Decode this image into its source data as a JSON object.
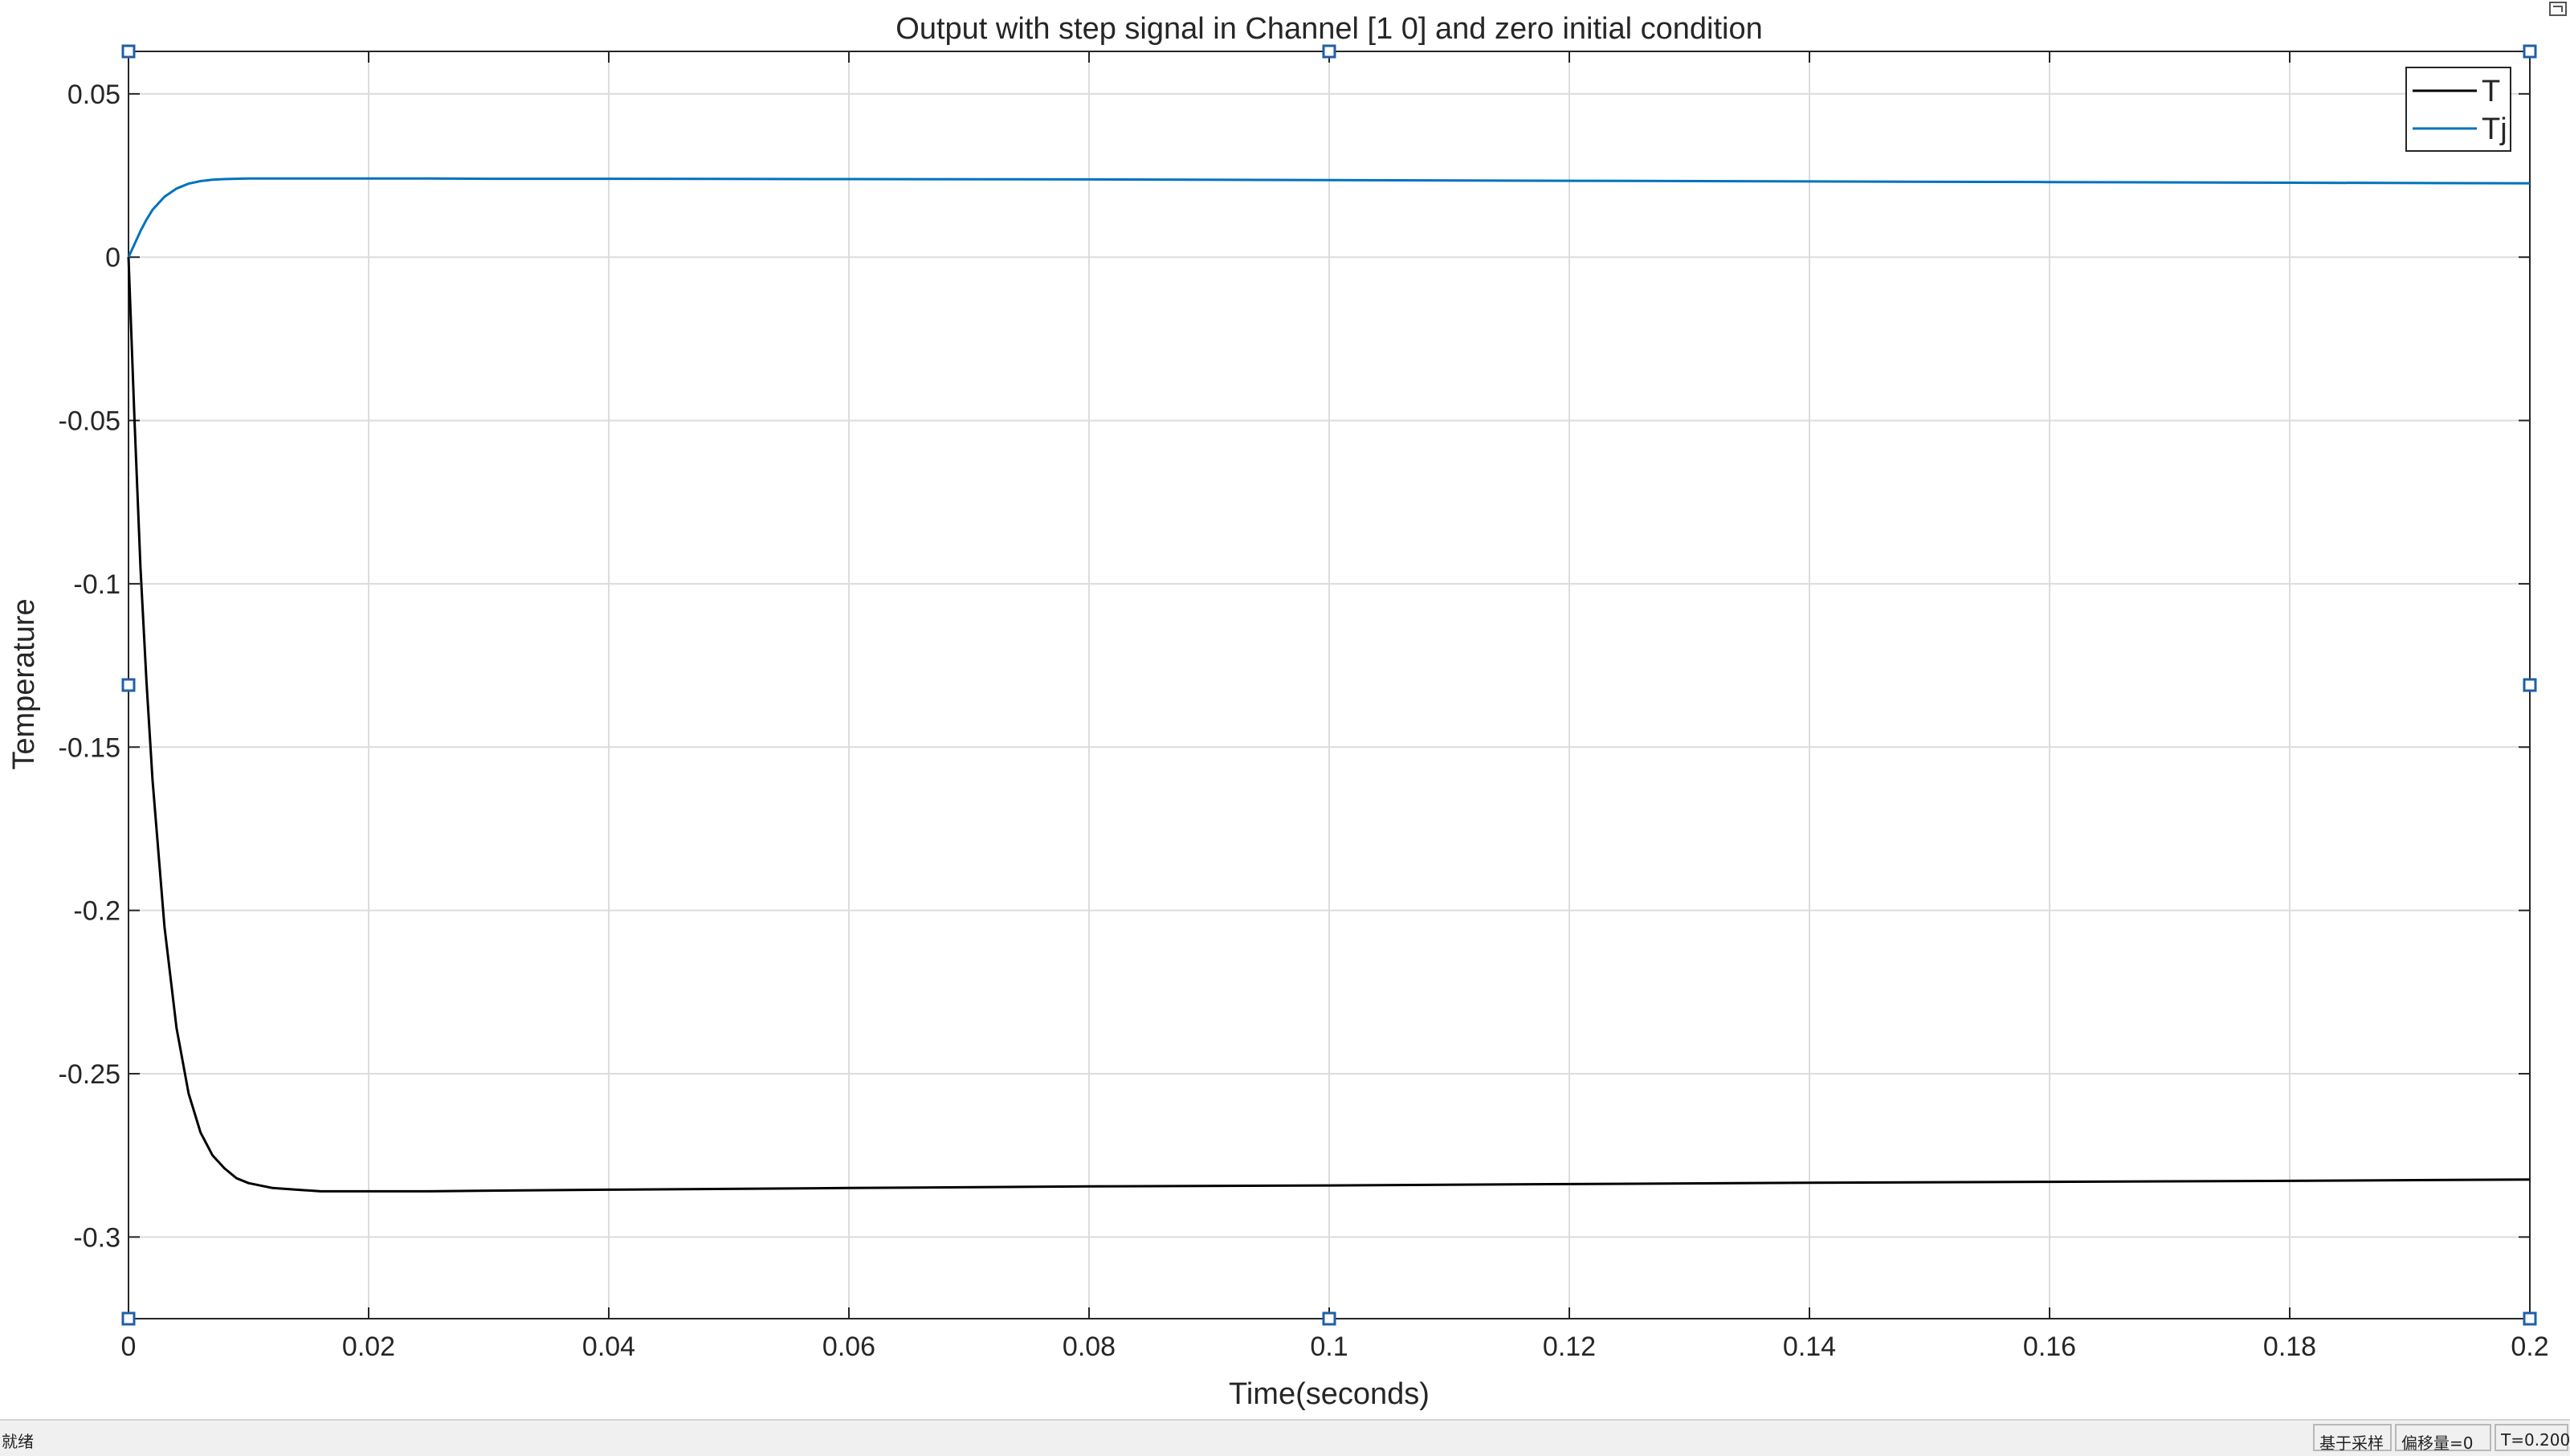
{
  "chart_data": {
    "type": "line",
    "title": "Output with step signal in Channel [1 0] and zero initial condition",
    "xlabel": "Time(seconds)",
    "ylabel": "Temperature",
    "xlim": [
      0,
      0.2
    ],
    "ylim": [
      -0.325,
      0.063
    ],
    "xticks": [
      0,
      0.02,
      0.04,
      0.06,
      0.08,
      0.1,
      0.12,
      0.14,
      0.16,
      0.18,
      0.2
    ],
    "xtick_labels": [
      "0",
      "0.02",
      "0.04",
      "0.06",
      "0.08",
      "0.1",
      "0.12",
      "0.14",
      "0.16",
      "0.18",
      "0.2"
    ],
    "yticks": [
      0.05,
      0,
      -0.05,
      -0.1,
      -0.15,
      -0.2,
      -0.25,
      -0.3
    ],
    "ytick_labels": [
      "0.05",
      "0",
      "-0.05",
      "-0.1",
      "-0.15",
      "-0.2",
      "-0.25",
      "-0.3"
    ],
    "grid": true,
    "legend_position": "top-right",
    "x": [
      0,
      0.0005,
      0.001,
      0.0015,
      0.002,
      0.003,
      0.004,
      0.005,
      0.006,
      0.007,
      0.008,
      0.009,
      0.01,
      0.012,
      0.014,
      0.016,
      0.018,
      0.02,
      0.025,
      0.03,
      0.04,
      0.06,
      0.08,
      0.1,
      0.12,
      0.14,
      0.16,
      0.18,
      0.2
    ],
    "series": [
      {
        "name": "T",
        "color": "#000000",
        "values": [
          0,
          -0.05,
          -0.095,
          -0.13,
          -0.16,
          -0.205,
          -0.236,
          -0.256,
          -0.268,
          -0.275,
          -0.279,
          -0.282,
          -0.2835,
          -0.285,
          -0.2855,
          -0.286,
          -0.286,
          -0.286,
          -0.286,
          -0.2858,
          -0.2855,
          -0.285,
          -0.2845,
          -0.2842,
          -0.2838,
          -0.2834,
          -0.2831,
          -0.2828,
          -0.2824
        ]
      },
      {
        "name": "Tj",
        "color": "#0072bd",
        "values": [
          0,
          0.004,
          0.008,
          0.0115,
          0.0145,
          0.0185,
          0.021,
          0.0225,
          0.0233,
          0.0237,
          0.0239,
          0.024,
          0.0241,
          0.0241,
          0.0241,
          0.0241,
          0.0241,
          0.0241,
          0.0241,
          0.024,
          0.024,
          0.0239,
          0.0238,
          0.0236,
          0.0234,
          0.0232,
          0.023,
          0.0228,
          0.0226
        ]
      }
    ]
  },
  "statusbar": {
    "status": "就绪",
    "sampling": "基于采样",
    "offset": "偏移量=0",
    "time": "T=0.200"
  },
  "colors": {
    "grid": "#dcdcdc",
    "axes": "#262626",
    "handle": "#1f5fa8"
  }
}
